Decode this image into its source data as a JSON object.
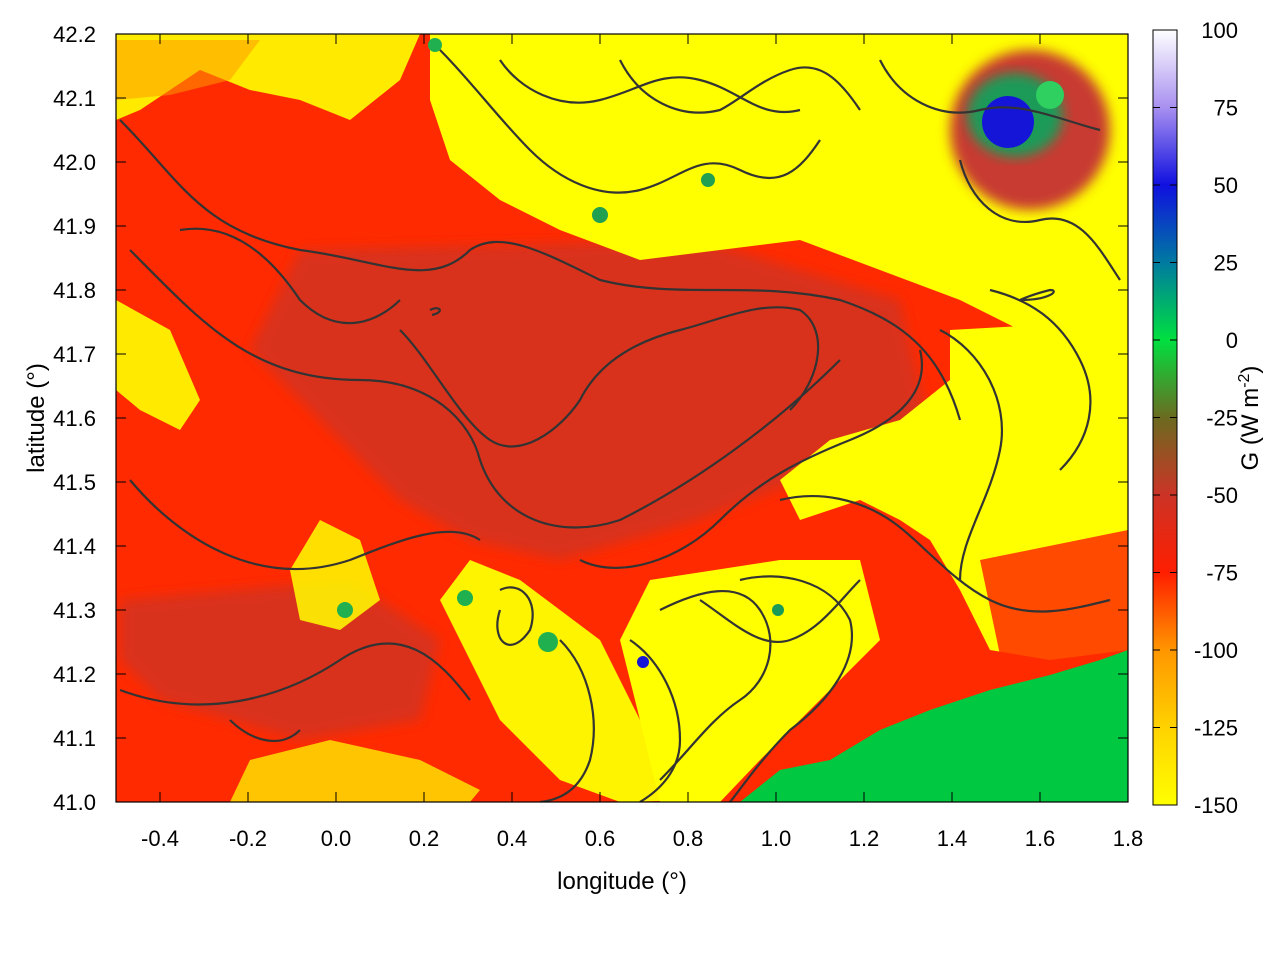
{
  "chart_data": {
    "type": "heatmap",
    "title": "",
    "xlabel": "longitude (°)",
    "ylabel": "latitude (°)",
    "xlim": [
      -0.5,
      1.8
    ],
    "ylim": [
      41.0,
      42.2
    ],
    "x_ticks": [
      "-0.4",
      "-0.2",
      "0.0",
      "0.2",
      "0.4",
      "0.6",
      "0.8",
      "1.0",
      "1.2",
      "1.4",
      "1.6",
      "1.8"
    ],
    "y_ticks": [
      "41.0",
      "41.1",
      "41.2",
      "41.3",
      "41.4",
      "41.5",
      "41.6",
      "41.7",
      "41.8",
      "41.9",
      "42.0",
      "42.1",
      "42.2"
    ],
    "colorbar": {
      "label_prefix": "G (W m",
      "label_exponent": "-2",
      "label_suffix": ")",
      "range": [
        -150,
        100
      ],
      "ticks": [
        "100",
        "75",
        "50",
        "25",
        "0",
        "-25",
        "-50",
        "-75",
        "-100",
        "-125",
        "-150"
      ],
      "stops": [
        {
          "value": -150,
          "color": "#ffff00"
        },
        {
          "value": -125,
          "color": "#ffd200"
        },
        {
          "value": -100,
          "color": "#ff9600"
        },
        {
          "value": -75,
          "color": "#ff1e00"
        },
        {
          "value": -50,
          "color": "#cc3326"
        },
        {
          "value": -25,
          "color": "#6b6b20"
        },
        {
          "value": 0,
          "color": "#00e040"
        },
        {
          "value": 25,
          "color": "#007aa0"
        },
        {
          "value": 50,
          "color": "#1010e0"
        },
        {
          "value": 75,
          "color": "#a890f0"
        },
        {
          "value": 100,
          "color": "#ffffff"
        }
      ]
    },
    "field_description_regions": [
      {
        "lon": [
          -0.5,
          1.3
        ],
        "lat": [
          41.3,
          41.95
        ],
        "value": -80
      },
      {
        "lon": [
          0.5,
          1.8
        ],
        "lat": [
          41.85,
          42.2
        ],
        "value": -145
      },
      {
        "lon": [
          1.45,
          1.65
        ],
        "lat": [
          42.0,
          42.15
        ],
        "value": 40
      },
      {
        "lon": [
          0.95,
          1.8
        ],
        "lat": [
          41.0,
          41.2
        ],
        "value": 5
      }
    ]
  }
}
